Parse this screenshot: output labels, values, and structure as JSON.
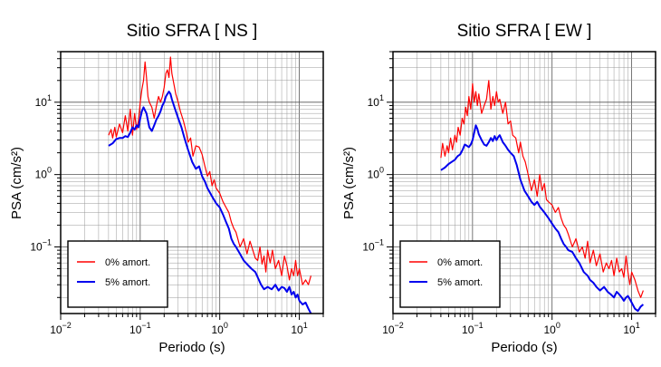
{
  "chart_data": [
    {
      "type": "line",
      "title": "Sitio SFRA [ NS ]",
      "xlabel": "Periodo (s)",
      "ylabel": "PSA (cm/s²)",
      "xscale": "log",
      "yscale": "log",
      "xlim": [
        0.01,
        20
      ],
      "ylim": [
        0.012,
        50
      ],
      "xticks": [
        {
          "v": 0.01,
          "b": "10",
          "e": "−2"
        },
        {
          "v": 0.1,
          "b": "10",
          "e": "−1"
        },
        {
          "v": 1,
          "b": "10",
          "e": "0"
        },
        {
          "v": 10,
          "b": "10",
          "e": "1"
        }
      ],
      "yticks": [
        {
          "v": 0.1,
          "b": "10",
          "e": "−1"
        },
        {
          "v": 1,
          "b": "10",
          "e": "0"
        },
        {
          "v": 10,
          "b": "10",
          "e": "1"
        }
      ],
      "grid": true,
      "legend_position": "bottom-left",
      "series": [
        {
          "name": "0% amort.",
          "color": "#ff0000",
          "width": 1.2,
          "x": [
            0.04,
            0.043,
            0.045,
            0.048,
            0.05,
            0.055,
            0.06,
            0.065,
            0.07,
            0.075,
            0.08,
            0.085,
            0.09,
            0.095,
            0.1,
            0.105,
            0.11,
            0.115,
            0.12,
            0.125,
            0.13,
            0.14,
            0.15,
            0.16,
            0.17,
            0.18,
            0.19,
            0.2,
            0.21,
            0.22,
            0.23,
            0.24,
            0.25,
            0.26,
            0.28,
            0.3,
            0.32,
            0.35,
            0.38,
            0.4,
            0.43,
            0.46,
            0.5,
            0.55,
            0.6,
            0.65,
            0.7,
            0.75,
            0.8,
            0.85,
            0.9,
            1.0,
            1.1,
            1.2,
            1.3,
            1.4,
            1.5,
            1.6,
            1.8,
            2.0,
            2.2,
            2.4,
            2.6,
            2.8,
            3.0,
            3.2,
            3.4,
            3.6,
            3.8,
            4.0,
            4.3,
            4.6,
            5.0,
            5.5,
            6.0,
            6.5,
            7.0,
            7.5,
            8.0,
            8.5,
            9.0,
            9.5,
            10,
            11,
            12,
            13,
            14
          ],
          "y": [
            3.5,
            4.2,
            3.2,
            4.5,
            3.3,
            5.0,
            3.8,
            6.5,
            4.0,
            8.0,
            3.5,
            7.0,
            4.2,
            5.5,
            10,
            15,
            20,
            36,
            22,
            12,
            10,
            8.5,
            6.0,
            9.0,
            12,
            10,
            12,
            16,
            25,
            28,
            22,
            42,
            25,
            20,
            13,
            10,
            7.5,
            5.5,
            3.8,
            2.8,
            3.2,
            1.8,
            2.5,
            2.4,
            1.9,
            1.3,
            0.95,
            1.1,
            0.7,
            0.85,
            0.65,
            0.55,
            0.42,
            0.35,
            0.3,
            0.22,
            0.18,
            0.16,
            0.1,
            0.13,
            0.08,
            0.12,
            0.09,
            0.07,
            0.065,
            0.1,
            0.058,
            0.075,
            0.045,
            0.09,
            0.06,
            0.09,
            0.05,
            0.065,
            0.04,
            0.075,
            0.055,
            0.035,
            0.05,
            0.04,
            0.065,
            0.04,
            0.05,
            0.03,
            0.035,
            0.03,
            0.04
          ]
        },
        {
          "name": "5% amort.",
          "color": "#0000ee",
          "width": 2,
          "x": [
            0.04,
            0.045,
            0.05,
            0.055,
            0.06,
            0.065,
            0.07,
            0.075,
            0.08,
            0.085,
            0.09,
            0.095,
            0.1,
            0.105,
            0.11,
            0.12,
            0.13,
            0.14,
            0.15,
            0.16,
            0.17,
            0.18,
            0.19,
            0.2,
            0.21,
            0.22,
            0.23,
            0.24,
            0.25,
            0.27,
            0.3,
            0.33,
            0.36,
            0.4,
            0.45,
            0.5,
            0.55,
            0.6,
            0.65,
            0.7,
            0.8,
            0.9,
            1.0,
            1.1,
            1.2,
            1.3,
            1.4,
            1.5,
            1.6,
            1.8,
            2.0,
            2.2,
            2.5,
            2.8,
            3.0,
            3.3,
            3.6,
            4.0,
            4.5,
            5.0,
            5.5,
            6.0,
            6.5,
            7.0,
            7.5,
            8.0,
            8.5,
            9.0,
            9.5,
            10,
            11,
            12,
            13,
            14
          ],
          "y": [
            2.5,
            2.7,
            3.1,
            3.2,
            3.2,
            3.4,
            3.3,
            3.8,
            4.5,
            4.2,
            4.8,
            4.5,
            6.0,
            7.5,
            8.5,
            7.0,
            4.5,
            4.0,
            4.8,
            5.8,
            6.5,
            7.5,
            9.0,
            10,
            12,
            13,
            14,
            13,
            11,
            8.5,
            6.0,
            4.5,
            3.2,
            2.2,
            1.5,
            1.2,
            1.3,
            0.95,
            0.8,
            0.65,
            0.5,
            0.4,
            0.35,
            0.28,
            0.22,
            0.18,
            0.13,
            0.11,
            0.1,
            0.08,
            0.065,
            0.058,
            0.05,
            0.045,
            0.038,
            0.03,
            0.026,
            0.028,
            0.026,
            0.03,
            0.025,
            0.028,
            0.027,
            0.024,
            0.028,
            0.022,
            0.024,
            0.02,
            0.022,
            0.018,
            0.016,
            0.017,
            0.014,
            0.012
          ]
        }
      ]
    },
    {
      "type": "line",
      "title": "Sitio SFRA [ EW ]",
      "xlabel": "Periodo (s)",
      "ylabel": "PSA (cm/s²)",
      "xscale": "log",
      "yscale": "log",
      "xlim": [
        0.01,
        20
      ],
      "ylim": [
        0.012,
        50
      ],
      "xticks": [
        {
          "v": 0.01,
          "b": "10",
          "e": "−2"
        },
        {
          "v": 0.1,
          "b": "10",
          "e": "−1"
        },
        {
          "v": 1,
          "b": "10",
          "e": "0"
        },
        {
          "v": 10,
          "b": "10",
          "e": "1"
        }
      ],
      "yticks": [
        {
          "v": 0.1,
          "b": "10",
          "e": "−1"
        },
        {
          "v": 1,
          "b": "10",
          "e": "0"
        },
        {
          "v": 10,
          "b": "10",
          "e": "1"
        }
      ],
      "grid": true,
      "legend_position": "bottom-left",
      "series": [
        {
          "name": "0% amort.",
          "color": "#ff0000",
          "width": 1.2,
          "x": [
            0.04,
            0.042,
            0.045,
            0.048,
            0.05,
            0.053,
            0.056,
            0.06,
            0.063,
            0.066,
            0.07,
            0.074,
            0.078,
            0.082,
            0.086,
            0.09,
            0.095,
            0.1,
            0.105,
            0.11,
            0.115,
            0.12,
            0.13,
            0.14,
            0.15,
            0.16,
            0.17,
            0.18,
            0.19,
            0.2,
            0.21,
            0.22,
            0.24,
            0.26,
            0.28,
            0.3,
            0.32,
            0.35,
            0.38,
            0.4,
            0.43,
            0.46,
            0.5,
            0.55,
            0.6,
            0.65,
            0.7,
            0.75,
            0.8,
            0.85,
            0.9,
            1.0,
            1.1,
            1.2,
            1.3,
            1.4,
            1.5,
            1.6,
            1.8,
            2.0,
            2.2,
            2.4,
            2.6,
            2.8,
            3.0,
            3.3,
            3.6,
            4.0,
            4.4,
            4.8,
            5.2,
            5.6,
            6.0,
            6.5,
            7.0,
            7.5,
            8.0,
            8.5,
            9.0,
            9.5,
            10,
            11,
            12,
            13,
            14
          ],
          "y": [
            1.7,
            2.7,
            1.8,
            2.5,
            2.0,
            3.2,
            2.2,
            3.5,
            2.8,
            4.5,
            3.5,
            6.0,
            5.0,
            8.5,
            6.5,
            12,
            8.0,
            18,
            10,
            14,
            9.0,
            13,
            7.0,
            9.0,
            11,
            20,
            8.0,
            12,
            9.0,
            14,
            10,
            11,
            7.0,
            10,
            5.0,
            5.5,
            3.5,
            3.2,
            2.0,
            2.8,
            1.8,
            1.5,
            1.0,
            0.6,
            0.85,
            0.5,
            1.0,
            0.6,
            0.75,
            0.45,
            0.42,
            0.38,
            0.3,
            0.35,
            0.25,
            0.2,
            0.18,
            0.15,
            0.1,
            0.13,
            0.085,
            0.1,
            0.07,
            0.12,
            0.06,
            0.09,
            0.055,
            0.08,
            0.045,
            0.06,
            0.05,
            0.065,
            0.04,
            0.07,
            0.045,
            0.05,
            0.038,
            0.075,
            0.045,
            0.03,
            0.045,
            0.035,
            0.025,
            0.02,
            0.025
          ]
        },
        {
          "name": "5% amort.",
          "color": "#0000ee",
          "width": 2,
          "x": [
            0.04,
            0.045,
            0.05,
            0.055,
            0.06,
            0.065,
            0.07,
            0.075,
            0.08,
            0.085,
            0.09,
            0.095,
            0.1,
            0.105,
            0.11,
            0.115,
            0.12,
            0.13,
            0.14,
            0.15,
            0.16,
            0.17,
            0.18,
            0.19,
            0.2,
            0.21,
            0.22,
            0.24,
            0.26,
            0.28,
            0.3,
            0.33,
            0.36,
            0.4,
            0.45,
            0.5,
            0.55,
            0.6,
            0.65,
            0.7,
            0.8,
            0.9,
            1.0,
            1.1,
            1.2,
            1.3,
            1.4,
            1.5,
            1.6,
            1.8,
            2.0,
            2.2,
            2.5,
            2.8,
            3.0,
            3.3,
            3.6,
            4.0,
            4.5,
            5.0,
            5.5,
            6.0,
            6.5,
            7.0,
            7.5,
            8.0,
            8.5,
            9.0,
            9.5,
            10,
            11,
            12,
            13,
            14
          ],
          "y": [
            1.15,
            1.25,
            1.4,
            1.5,
            1.6,
            1.8,
            1.9,
            2.2,
            2.6,
            2.5,
            2.4,
            2.6,
            3.0,
            3.8,
            4.8,
            4.3,
            3.6,
            3.0,
            2.6,
            2.5,
            2.8,
            3.2,
            2.9,
            3.4,
            3.0,
            3.3,
            3.5,
            2.8,
            2.5,
            2.2,
            2.0,
            1.8,
            1.35,
            0.85,
            0.6,
            0.5,
            0.42,
            0.38,
            0.42,
            0.36,
            0.3,
            0.25,
            0.21,
            0.18,
            0.16,
            0.13,
            0.11,
            0.1,
            0.09,
            0.085,
            0.07,
            0.06,
            0.045,
            0.04,
            0.035,
            0.032,
            0.028,
            0.025,
            0.028,
            0.024,
            0.022,
            0.02,
            0.024,
            0.022,
            0.02,
            0.018,
            0.02,
            0.021,
            0.019,
            0.017,
            0.014,
            0.013,
            0.015,
            0.016
          ]
        }
      ]
    }
  ]
}
